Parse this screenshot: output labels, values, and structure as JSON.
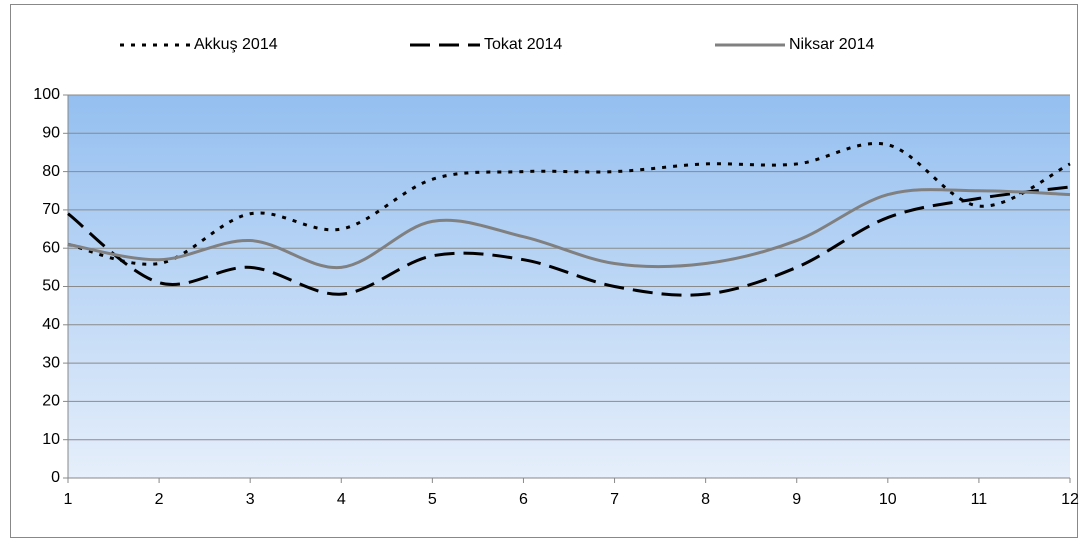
{
  "chart_data": {
    "type": "line",
    "x": [
      1,
      2,
      3,
      4,
      5,
      6,
      7,
      8,
      9,
      10,
      11,
      12
    ],
    "series": [
      {
        "name": "Akkuş 2014",
        "color": "#000000",
        "dash": "dotted",
        "values": [
          61,
          56,
          69,
          65,
          78,
          80,
          80,
          82,
          82,
          87,
          71,
          82
        ]
      },
      {
        "name": "Tokat 2014",
        "color": "#000000",
        "dash": "dashed",
        "values": [
          69,
          51,
          55,
          48,
          58,
          57,
          50,
          48,
          55,
          68,
          73,
          76
        ]
      },
      {
        "name": "Niksar 2014",
        "color": "#808080",
        "dash": "solid",
        "values": [
          61,
          57,
          62,
          55,
          67,
          63,
          56,
          56,
          62,
          74,
          75,
          74
        ]
      }
    ],
    "xlim": [
      1,
      12
    ],
    "xticks": [
      1,
      2,
      3,
      4,
      5,
      6,
      7,
      8,
      9,
      10,
      11,
      12
    ],
    "ylim": [
      0,
      100
    ],
    "yticks": [
      0,
      10,
      20,
      30,
      40,
      50,
      60,
      70,
      80,
      90,
      100
    ],
    "grid": true,
    "smooth": true,
    "legend": "top"
  }
}
